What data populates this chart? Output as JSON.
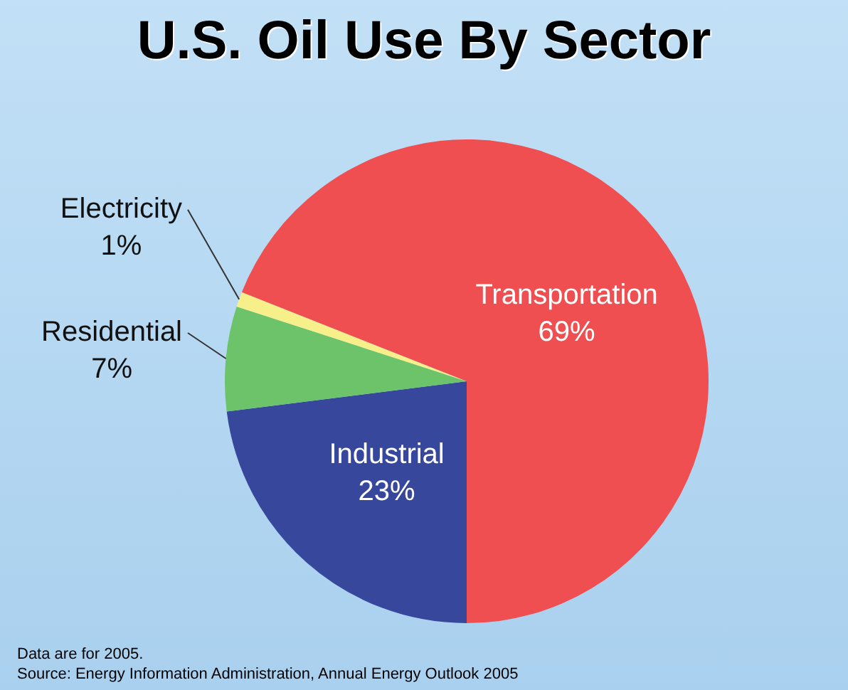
{
  "chart_data": {
    "type": "pie",
    "title": "U.S. Oil Use By Sector",
    "categories": [
      "Industrial",
      "Residential",
      "Electricity",
      "Transportation"
    ],
    "values": [
      23,
      7,
      1,
      69
    ],
    "value_labels": [
      "23%",
      "7%",
      "1%",
      "69%"
    ],
    "colors": [
      "#36479c",
      "#6cc36a",
      "#f7f08a",
      "#ef4f50"
    ],
    "legend": false,
    "annotations": [
      "Data are for 2005.",
      "Source: Energy Information Administration, Annual Energy Outlook 2005"
    ]
  }
}
